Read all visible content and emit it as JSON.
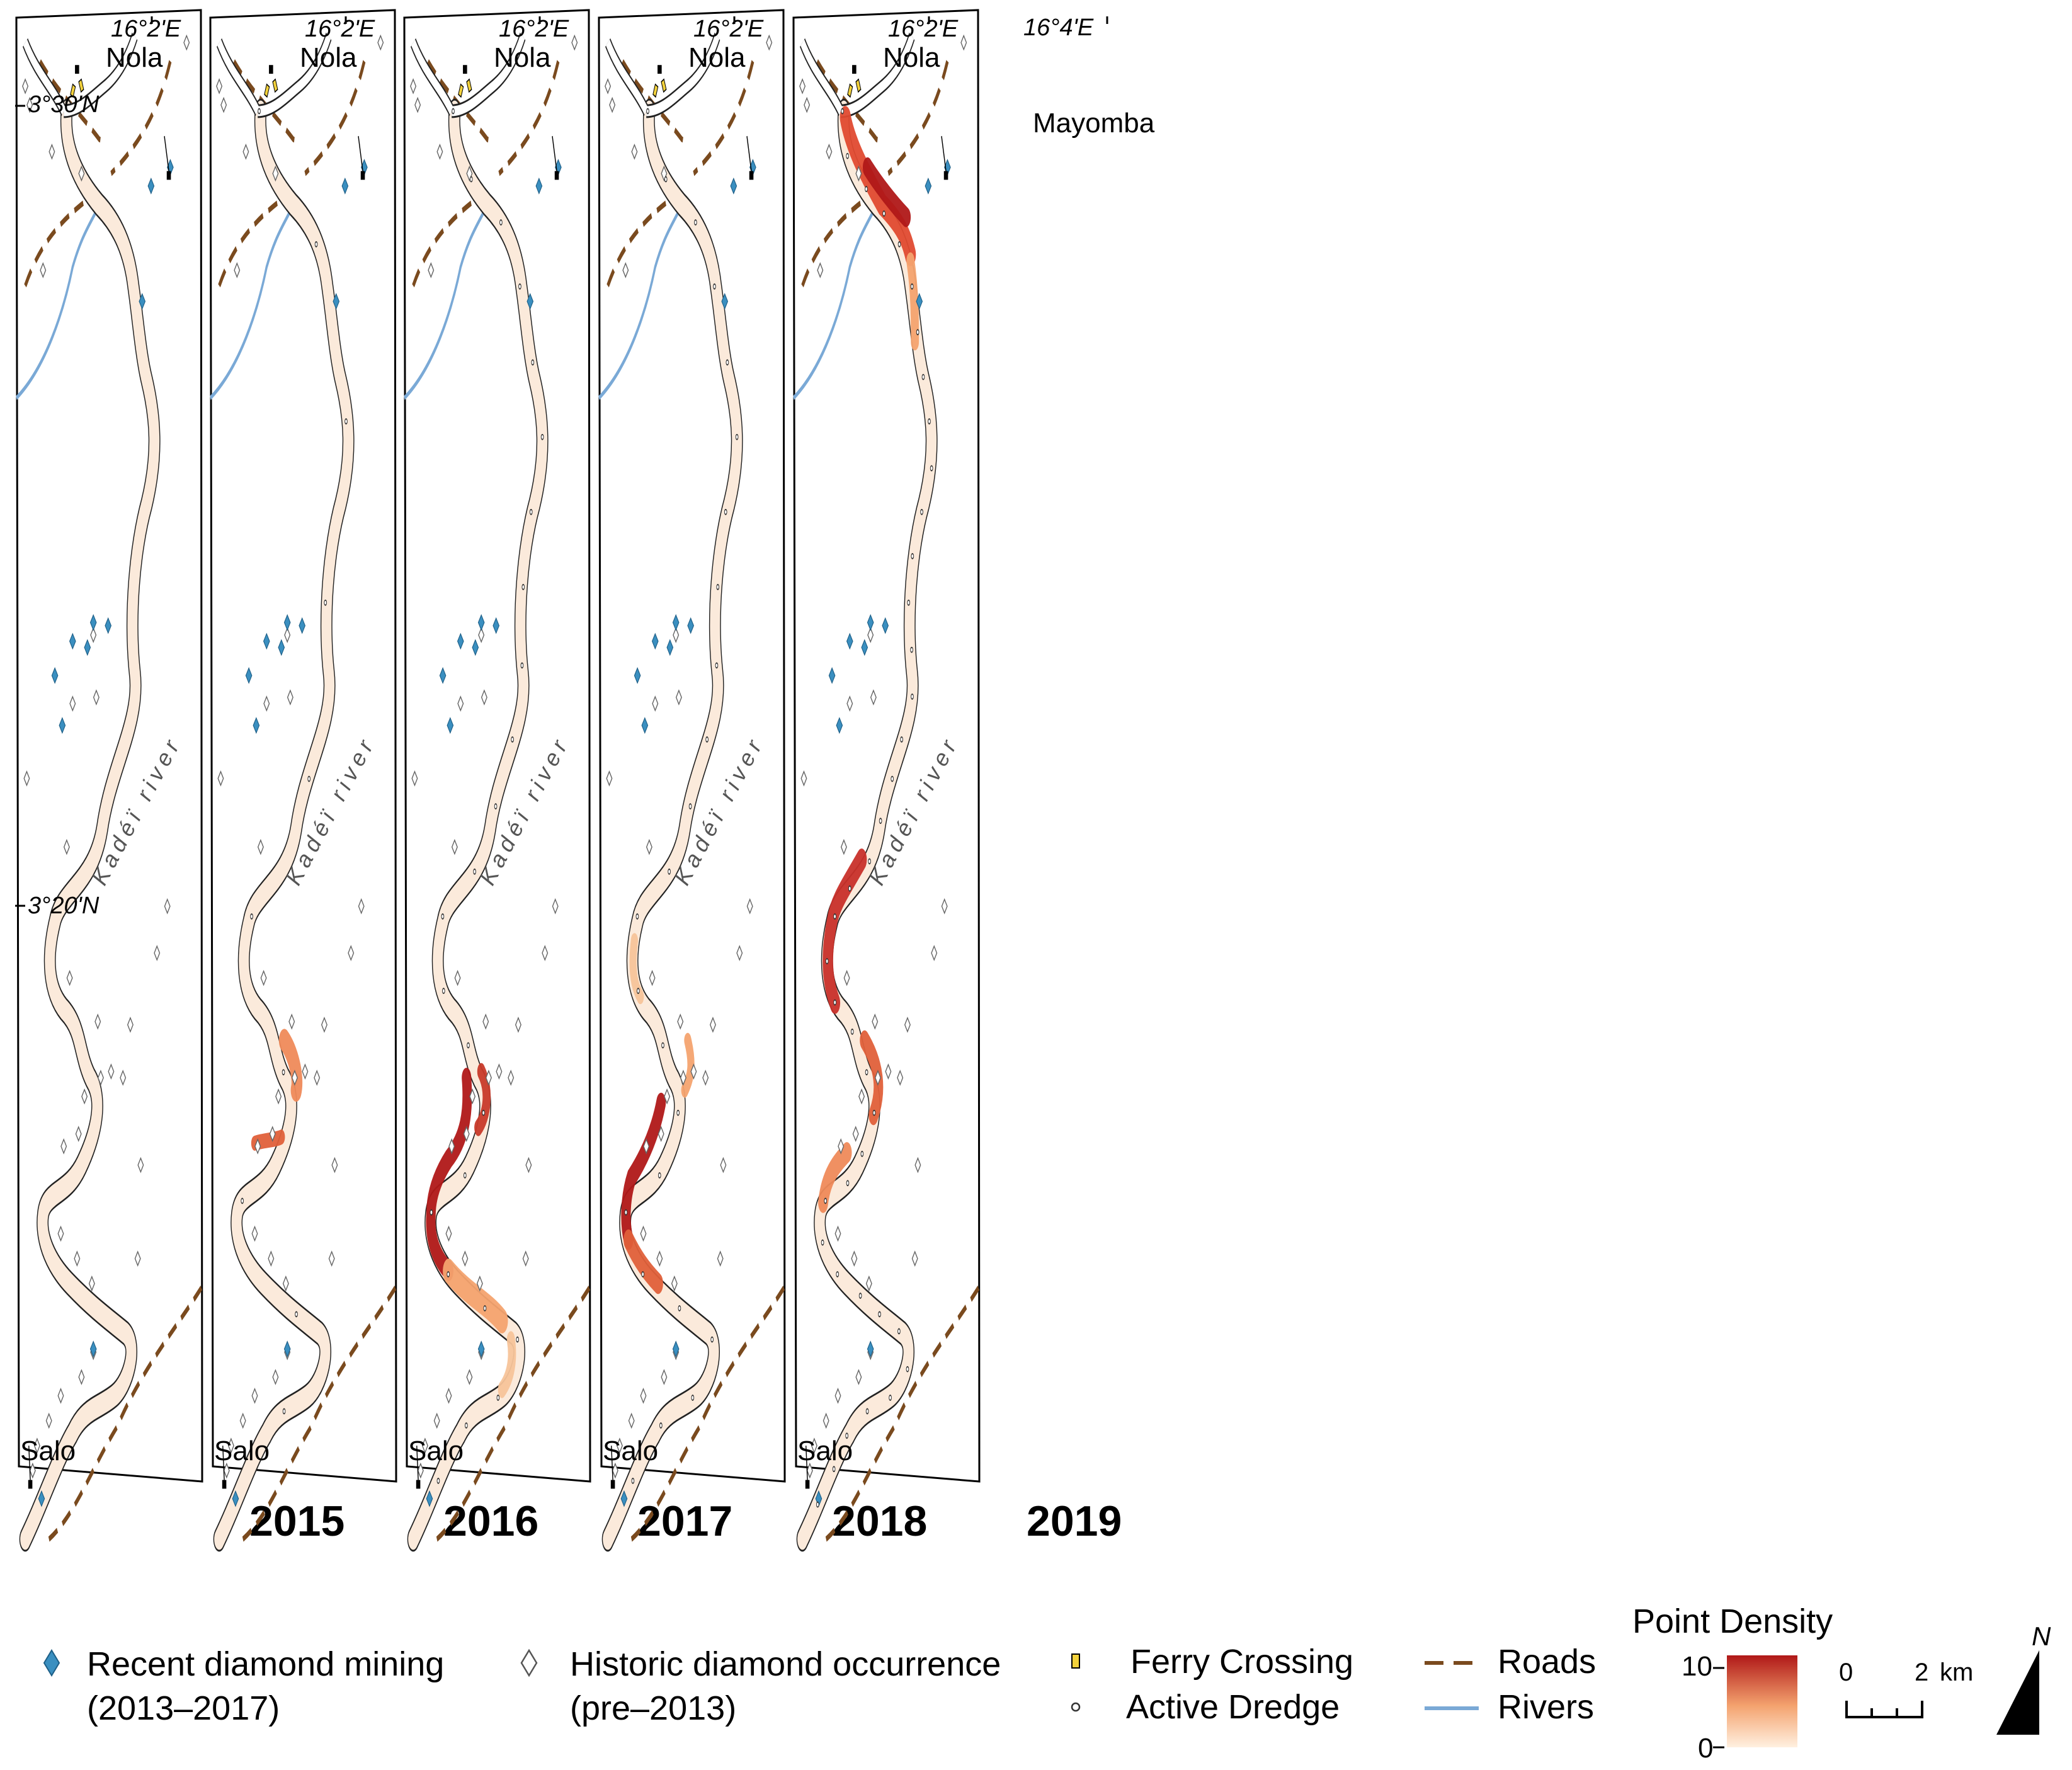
{
  "panels": [
    {
      "year": "2015"
    },
    {
      "year": "2016"
    },
    {
      "year": "2017"
    },
    {
      "year": "2018"
    },
    {
      "year": "2019"
    }
  ],
  "map_labels": {
    "lon_left": "16°2'E",
    "lon_right": "16°4'E",
    "lat_top": "3°30'N",
    "lat_bottom": "3°20'N",
    "town_nola": "Nola",
    "town_mayomba": "Mayomba",
    "town_salo": "Salo",
    "river_name": "Kadéï river"
  },
  "legend": {
    "recent_mining_line1": "Recent diamond mining",
    "recent_mining_line2": "(2013–2017)",
    "historic_line1": "Historic diamond occurrence",
    "historic_line2": "(pre–2013)",
    "ferry": "Ferry Crossing",
    "dredge": "Active Dredge",
    "roads": "Roads",
    "rivers": "Rivers",
    "density_title": "Point Density",
    "density_max": "10",
    "density_min": "0",
    "scale_zero": "0",
    "scale_two": "2",
    "scale_unit": "km",
    "north": "N"
  },
  "colors": {
    "river_fill": "#fbeadb",
    "density_low": "#fde6cc",
    "density_mid": "#ef8a5a",
    "density_high": "#b01818",
    "recent_mining": "#3a8fc0",
    "roads": "#7a4a1e",
    "rivers": "#7aa9d6",
    "ferry": "#f3d23c"
  }
}
